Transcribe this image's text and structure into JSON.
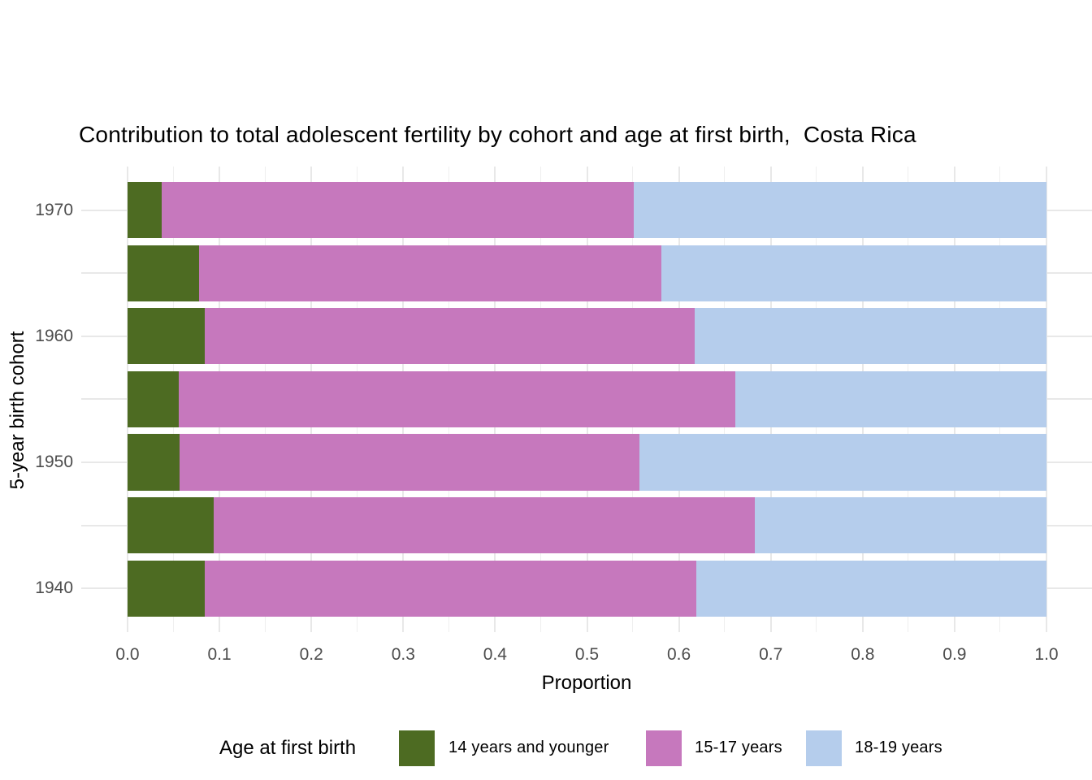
{
  "title": "Contribution to total adolescent fertility by cohort and age at first birth,  Costa Rica",
  "chart_data": {
    "type": "bar",
    "orientation": "horizontal",
    "stacked": true,
    "title": "Contribution to total adolescent fertility by cohort and age at first birth,  Costa Rica",
    "xlabel": "Proportion",
    "ylabel": "5-year birth cohort",
    "xlim": [
      0.0,
      1.0
    ],
    "x_ticks": [
      "0.0",
      "0.1",
      "0.2",
      "0.3",
      "0.4",
      "0.5",
      "0.6",
      "0.7",
      "0.8",
      "0.9",
      "1.0"
    ],
    "categories": [
      "1970",
      "1965",
      "1960",
      "1955",
      "1950",
      "1945",
      "1940"
    ],
    "y_ticks": [
      "1970",
      "1960",
      "1950",
      "1940"
    ],
    "grid": true,
    "series": [
      {
        "name": "14 years and younger",
        "color": "#4d6b22",
        "values": [
          0.037,
          0.078,
          0.084,
          0.056,
          0.057,
          0.094,
          0.084
        ]
      },
      {
        "name": "15-17 years",
        "color": "#c678bd",
        "values": [
          0.514,
          0.503,
          0.533,
          0.605,
          0.5,
          0.589,
          0.535
        ]
      },
      {
        "name": "18-19 years",
        "color": "#b5cdec",
        "values": [
          0.449,
          0.419,
          0.383,
          0.339,
          0.443,
          0.317,
          0.381
        ]
      }
    ],
    "legend": {
      "title": "Age at first birth",
      "position": "bottom"
    }
  }
}
